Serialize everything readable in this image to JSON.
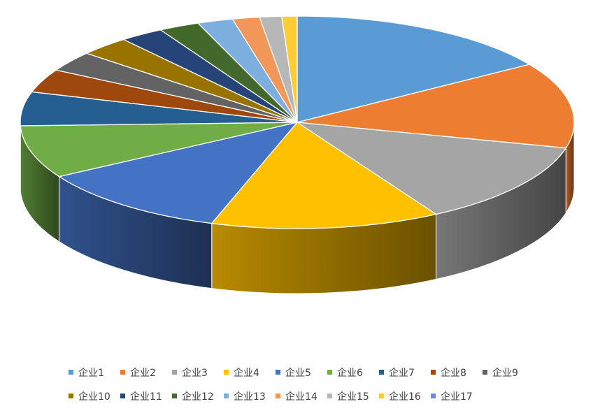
{
  "chart_data": {
    "type": "pie",
    "title": "",
    "style": "3d",
    "legend_position": "bottom",
    "series": [
      {
        "name": "企业1",
        "value": 16.0,
        "color": "#5B9BD5"
      },
      {
        "name": "企业2",
        "value": 13.2,
        "color": "#ED7D31"
      },
      {
        "name": "企业3",
        "value": 12.9,
        "color": "#A5A5A5"
      },
      {
        "name": "企业4",
        "value": 13.5,
        "color": "#FFC000"
      },
      {
        "name": "企业5",
        "value": 11.6,
        "color": "#4472C4"
      },
      {
        "name": "企业6",
        "value": 8.1,
        "color": "#70AD47"
      },
      {
        "name": "企业7",
        "value": 5.2,
        "color": "#255E91"
      },
      {
        "name": "企业8",
        "value": 3.6,
        "color": "#9E480E"
      },
      {
        "name": "企业9",
        "value": 3.1,
        "color": "#636363"
      },
      {
        "name": "企业10",
        "value": 3.0,
        "color": "#997300"
      },
      {
        "name": "企业11",
        "value": 2.6,
        "color": "#264478"
      },
      {
        "name": "企业12",
        "value": 2.4,
        "color": "#43682B"
      },
      {
        "name": "企业13",
        "value": 2.1,
        "color": "#7CAFDD"
      },
      {
        "name": "企业14",
        "value": 1.6,
        "color": "#F1975A"
      },
      {
        "name": "企业15",
        "value": 1.3,
        "color": "#B7B7B7"
      },
      {
        "name": "企业16",
        "value": 0.9,
        "color": "#FFCD33"
      },
      {
        "name": "企业17",
        "value": 0.0,
        "color": "#698ED0"
      }
    ]
  }
}
